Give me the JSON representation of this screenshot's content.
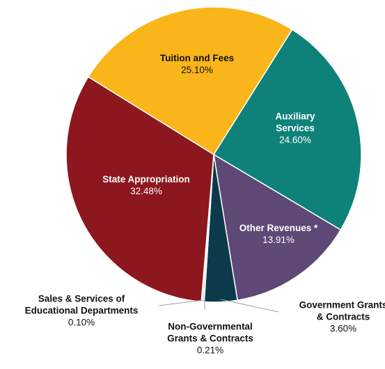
{
  "chart_data": {
    "type": "pie",
    "slices": [
      {
        "label": "Tuition and Fees",
        "value": 25.1,
        "display": "25.10%",
        "color": "#F9B51A"
      },
      {
        "label": "Auxiliary Services",
        "value": 24.6,
        "display": "24.60%",
        "color": "#0E8279"
      },
      {
        "label": "Other Revenues *",
        "value": 13.91,
        "display": "13.91%",
        "color": "#5E4876"
      },
      {
        "label": "Government Grants & Contracts",
        "value": 3.6,
        "display": "3.60%",
        "color": "#0D3A4B"
      },
      {
        "label": "Non-Governmental Grants & Contracts",
        "value": 0.21,
        "display": "0.21%",
        "color": "#CFCFCF"
      },
      {
        "label": "Sales & Services of Educational Departments",
        "value": 0.1,
        "display": "0.10%",
        "color": "#9A9A9A"
      },
      {
        "label": "State Appropriation",
        "value": 32.48,
        "display": "32.48%",
        "color": "#8C171E"
      }
    ],
    "labels": [
      {
        "lines": [
          "Tuition and Fees"
        ],
        "value": "25.10%",
        "color": "#111111"
      },
      {
        "lines": [
          "Auxiliary",
          "Services"
        ],
        "value": "24.60%",
        "color": "#ffffff"
      },
      {
        "lines": [
          "Other Revenues *"
        ],
        "value": "13.91%",
        "color": "#ffffff"
      },
      {
        "lines": [
          "Government Grants",
          "& Contracts"
        ],
        "value": "3.60%",
        "color": "#111111"
      },
      {
        "lines": [
          "Non-Governmental",
          "Grants & Contracts"
        ],
        "value": "0.21%",
        "color": "#111111"
      },
      {
        "lines": [
          "Sales & Services of",
          "Educational Departments"
        ],
        "value": "0.10%",
        "color": "#111111"
      },
      {
        "lines": [
          "State Appropriation"
        ],
        "value": "32.48%",
        "color": "#ffffff"
      }
    ],
    "leader_color": "#9E9E9E"
  }
}
